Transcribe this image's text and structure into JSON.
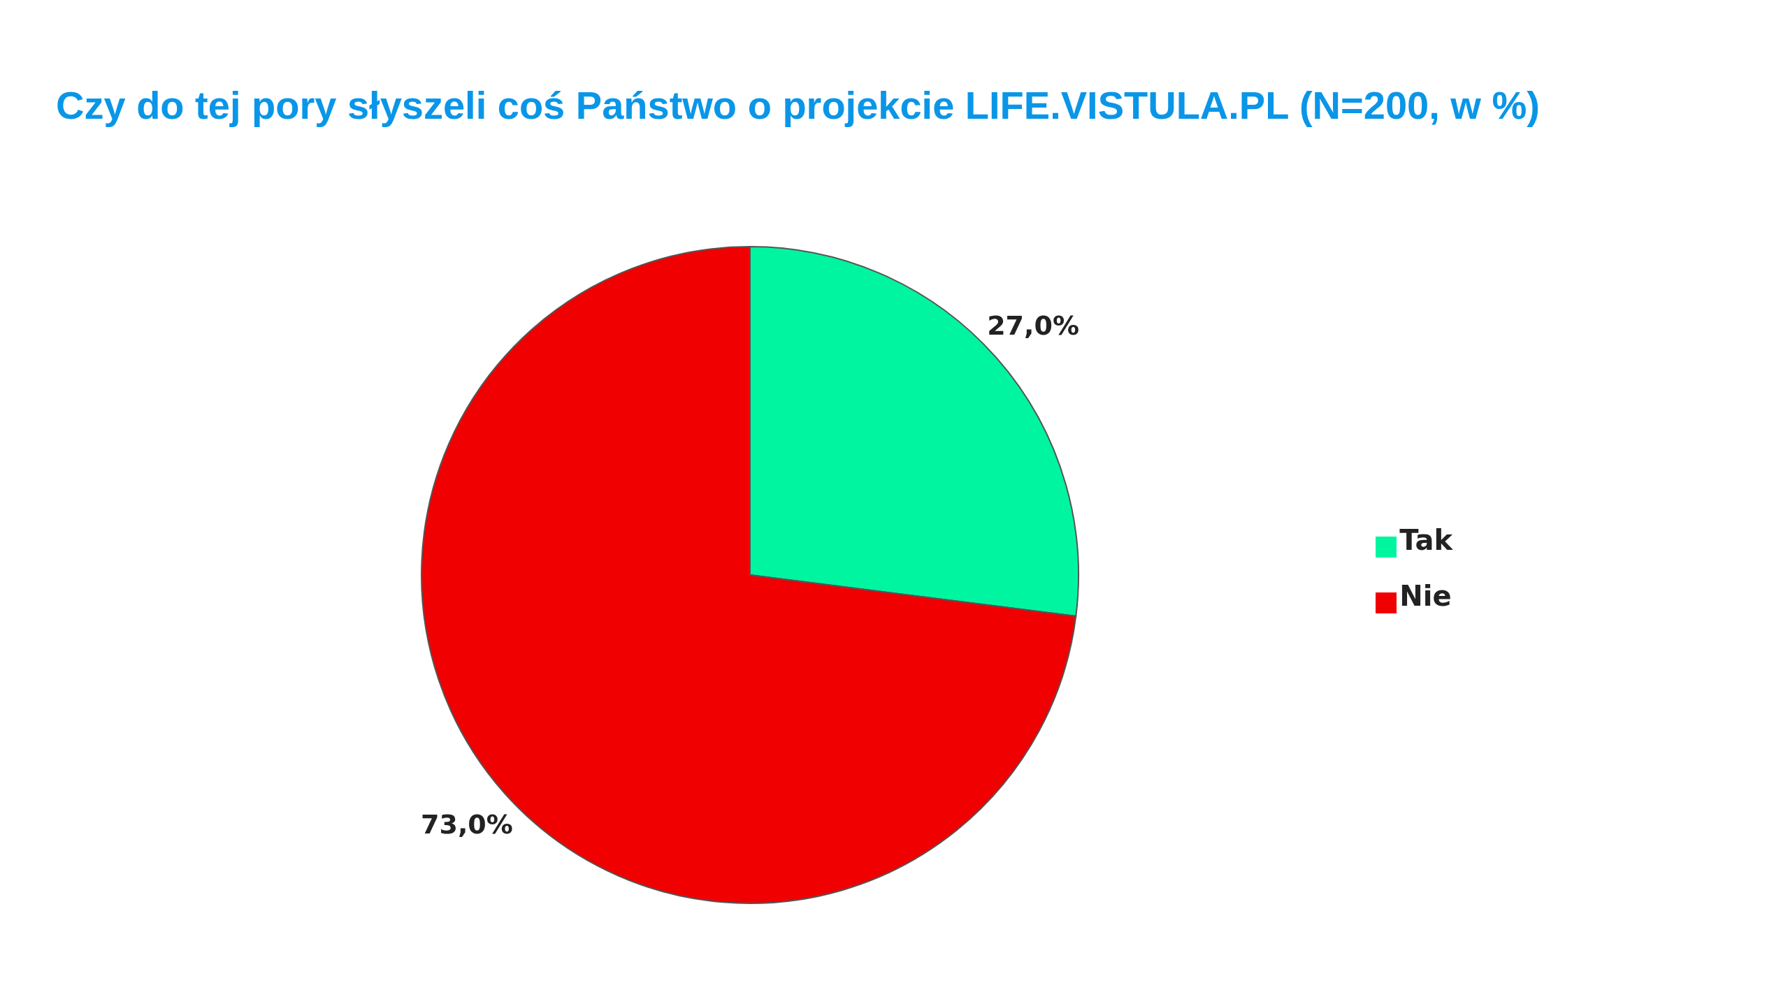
{
  "chart_data": {
    "type": "pie",
    "title": "Czy do tej pory słyszeli coś Państwo o projekcie LIFE.VISTULA.PL (N=200, w %)",
    "categories": [
      "Tak",
      "Nie"
    ],
    "values": [
      27,
      73
    ],
    "colors": [
      "#00f5a0",
      "#f00000"
    ],
    "value_labels": [
      "27,0%",
      "73,0%"
    ],
    "legend": "right"
  }
}
